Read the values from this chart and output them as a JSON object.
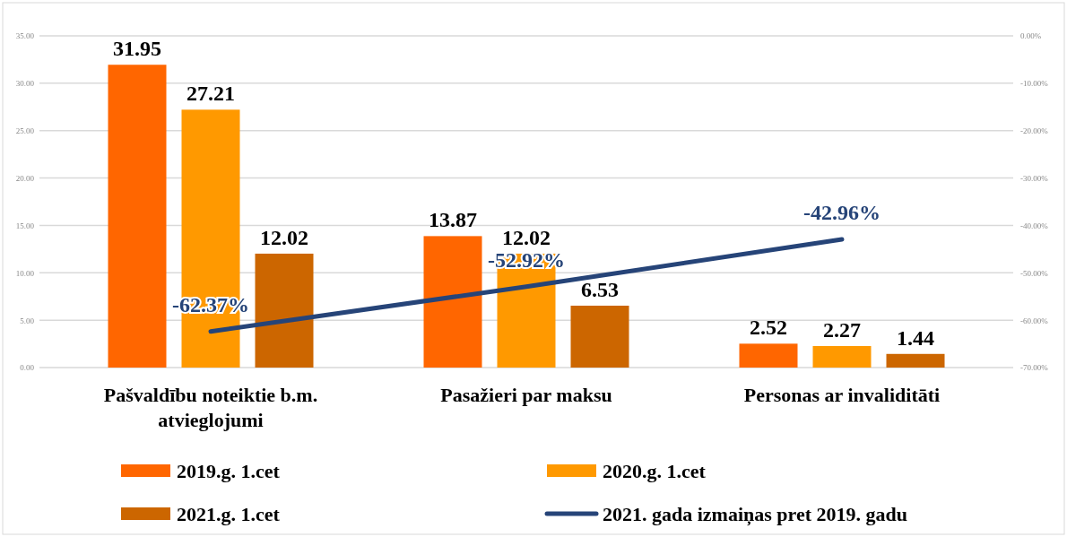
{
  "chart_data": {
    "type": "bar",
    "categories": [
      "Pašvaldību noteiktie b.m. atvieglojumi",
      "Pasažieri par maksu",
      "Personas ar invaliditāti"
    ],
    "series": [
      {
        "name": "2019.g. 1.cet",
        "color": "#ff6600",
        "values": [
          31.95,
          13.87,
          2.52
        ]
      },
      {
        "name": "2020.g. 1.cet",
        "color": "#ff9900",
        "values": [
          27.21,
          12.02,
          2.27
        ]
      },
      {
        "name": "2021.g. 1.cet",
        "color": "#cc6600",
        "values": [
          12.02,
          6.53,
          1.44
        ]
      },
      {
        "name": "2021. gada izmaiņas pret 2019. gadu",
        "type": "line",
        "axis": "y2",
        "color": "#264478",
        "values": [
          -62.37,
          -52.92,
          -42.96
        ],
        "value_labels": [
          "-62.37%",
          "-52.92%",
          "-42.96%"
        ]
      }
    ],
    "data_labels": true,
    "ylim": [
      0,
      35
    ],
    "yticks": [
      {
        "value": 0,
        "label": "0.00"
      },
      {
        "value": 5,
        "label": "5.00"
      },
      {
        "value": 10,
        "label": "10.00"
      },
      {
        "value": 15,
        "label": "15.00"
      },
      {
        "value": 20,
        "label": "20.00"
      },
      {
        "value": 25,
        "label": "25.00"
      },
      {
        "value": 30,
        "label": "30.00"
      },
      {
        "value": 35,
        "label": "35.00"
      }
    ],
    "y2lim": [
      -70,
      0
    ],
    "y2ticks": [
      {
        "value": 0,
        "label": "0.00%"
      },
      {
        "value": -10,
        "label": "-10.00%"
      },
      {
        "value": -20,
        "label": "-20.00%"
      },
      {
        "value": -30,
        "label": "-30.00%"
      },
      {
        "value": -40,
        "label": "-40.00%"
      },
      {
        "value": -50,
        "label": "-50.00%"
      },
      {
        "value": -60,
        "label": "-60.00%"
      },
      {
        "value": -70,
        "label": "-70.00%"
      }
    ],
    "grid": "y",
    "legend": "bottom"
  }
}
